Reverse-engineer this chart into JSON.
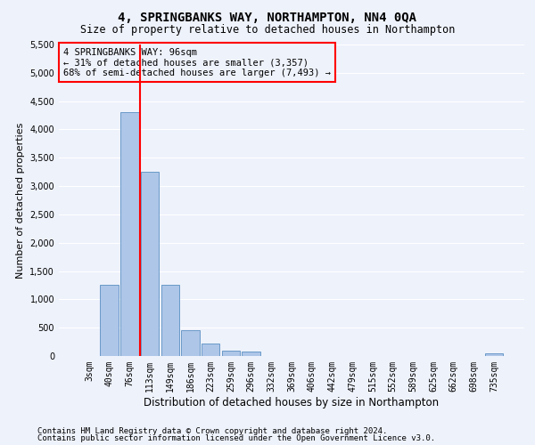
{
  "title": "4, SPRINGBANKS WAY, NORTHAMPTON, NN4 0QA",
  "subtitle": "Size of property relative to detached houses in Northampton",
  "xlabel": "Distribution of detached houses by size in Northampton",
  "ylabel": "Number of detached properties",
  "bar_labels": [
    "3sqm",
    "40sqm",
    "76sqm",
    "113sqm",
    "149sqm",
    "186sqm",
    "223sqm",
    "259sqm",
    "296sqm",
    "332sqm",
    "369sqm",
    "406sqm",
    "442sqm",
    "479sqm",
    "515sqm",
    "552sqm",
    "589sqm",
    "625sqm",
    "662sqm",
    "698sqm",
    "735sqm"
  ],
  "bar_values": [
    0,
    1250,
    4300,
    3250,
    1250,
    450,
    220,
    100,
    75,
    0,
    0,
    0,
    0,
    0,
    0,
    0,
    0,
    0,
    0,
    0,
    50
  ],
  "bar_color": "#aec6e8",
  "bar_edge_color": "#5a8fc2",
  "vline_color": "red",
  "vline_linewidth": 1.5,
  "vline_position": 2.5,
  "annotation_box_text": "4 SPRINGBANKS WAY: 96sqm\n← 31% of detached houses are smaller (3,357)\n68% of semi-detached houses are larger (7,493) →",
  "ylim": [
    0,
    5500
  ],
  "yticks": [
    0,
    500,
    1000,
    1500,
    2000,
    2500,
    3000,
    3500,
    4000,
    4500,
    5000,
    5500
  ],
  "background_color": "#eef2fb",
  "grid_color": "#ffffff",
  "footer_line1": "Contains HM Land Registry data © Crown copyright and database right 2024.",
  "footer_line2": "Contains public sector information licensed under the Open Government Licence v3.0.",
  "title_fontsize": 10,
  "subtitle_fontsize": 8.5,
  "xlabel_fontsize": 8.5,
  "ylabel_fontsize": 8,
  "tick_fontsize": 7,
  "annotation_fontsize": 7.5,
  "footer_fontsize": 6.5
}
